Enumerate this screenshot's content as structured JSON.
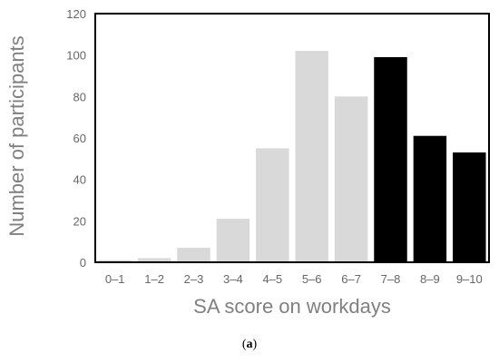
{
  "chart_data": {
    "type": "bar",
    "title": "",
    "xlabel": "SA score on workdays",
    "ylabel": "Number of participants",
    "categories": [
      "0–1",
      "1–2",
      "2–3",
      "3–4",
      "4–5",
      "5–6",
      "6–7",
      "7–8",
      "8–9",
      "9–10"
    ],
    "values": [
      1,
      2,
      7,
      21,
      55,
      102,
      80,
      99,
      61,
      53
    ],
    "bar_colors": [
      "#d9d9d9",
      "#d9d9d9",
      "#d9d9d9",
      "#d9d9d9",
      "#d9d9d9",
      "#d9d9d9",
      "#d9d9d9",
      "#000000",
      "#000000",
      "#000000"
    ],
    "ylim": [
      0,
      120
    ],
    "yticks": [
      0,
      20,
      40,
      60,
      80,
      100,
      120
    ],
    "grid": false,
    "legend": "none"
  },
  "caption": {
    "open": "(",
    "label": "a",
    "close": ")"
  }
}
